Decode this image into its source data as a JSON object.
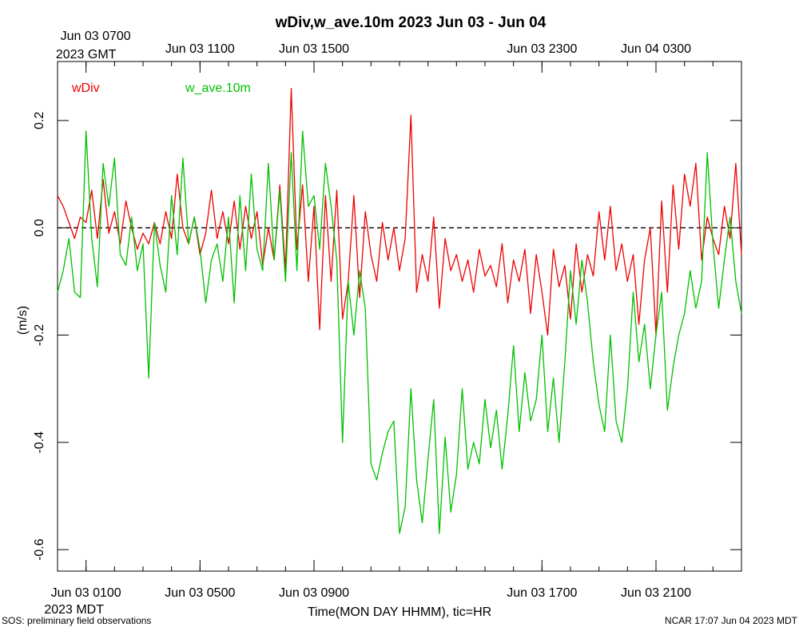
{
  "chart_data": {
    "type": "line",
    "title": "wDiv,w_ave.10m 2023 Jun 03 - Jun 04",
    "xlabel": "Time(MON DAY HHMM), tic=HR",
    "ylabel": "(m/s)",
    "ylim": [
      -0.64,
      0.31
    ],
    "x_unit": "hours since Jun 03 0000 MDT",
    "xlim": [
      0.0,
      24.0
    ],
    "yticks": [
      0.2,
      0.0,
      -0.2,
      -0.4,
      -0.6
    ],
    "yticks_labels": [
      "0.2",
      "0.0",
      "-0.2",
      "-0.4",
      "-0.6"
    ],
    "zero_line": 0.0,
    "bottom_axis_ticks": [
      {
        "x": 1.0,
        "label": "Jun 03 0100",
        "sublabel": "2023 MDT"
      },
      {
        "x": 5.0,
        "label": "Jun 03 0500",
        "sublabel": ""
      },
      {
        "x": 9.0,
        "label": "Jun 03 0900",
        "sublabel": ""
      },
      {
        "x": 17.0,
        "label": "Jun 03 1700",
        "sublabel": ""
      },
      {
        "x": 21.0,
        "label": "Jun 03 2100",
        "sublabel": ""
      }
    ],
    "top_axis_ticks": [
      {
        "x": 1.0,
        "label": "Jun 03 0700",
        "sublabel": "2023 GMT"
      },
      {
        "x": 5.0,
        "label": "Jun 03 1100",
        "sublabel": ""
      },
      {
        "x": 9.0,
        "label": "Jun 03 1500",
        "sublabel": ""
      },
      {
        "x": 17.0,
        "label": "Jun 03 2300",
        "sublabel": ""
      },
      {
        "x": 21.0,
        "label": "Jun 04 0300",
        "sublabel": ""
      }
    ],
    "legend": [
      {
        "name": "wDiv",
        "color": "#ee0000"
      },
      {
        "name": "w_ave.10m",
        "color": "#00c000"
      }
    ],
    "series": [
      {
        "name": "wDiv",
        "color": "#ee0000",
        "points": [
          [
            0.0,
            0.06
          ],
          [
            0.2,
            0.04
          ],
          [
            0.4,
            0.01
          ],
          [
            0.6,
            -0.02
          ],
          [
            0.8,
            0.02
          ],
          [
            1.0,
            0.01
          ],
          [
            1.2,
            0.07
          ],
          [
            1.4,
            -0.02
          ],
          [
            1.6,
            0.09
          ],
          [
            1.8,
            -0.01
          ],
          [
            2.0,
            0.03
          ],
          [
            2.2,
            -0.03
          ],
          [
            2.4,
            0.05
          ],
          [
            2.6,
            0.0
          ],
          [
            2.8,
            -0.04
          ],
          [
            3.0,
            -0.01
          ],
          [
            3.2,
            -0.03
          ],
          [
            3.4,
            0.01
          ],
          [
            3.6,
            -0.03
          ],
          [
            3.8,
            0.03
          ],
          [
            4.0,
            -0.02
          ],
          [
            4.2,
            0.1
          ],
          [
            4.4,
            0.0
          ],
          [
            4.6,
            -0.03
          ],
          [
            4.8,
            0.02
          ],
          [
            5.0,
            -0.05
          ],
          [
            5.2,
            -0.01
          ],
          [
            5.4,
            0.07
          ],
          [
            5.6,
            -0.02
          ],
          [
            5.8,
            0.03
          ],
          [
            6.0,
            -0.03
          ],
          [
            6.2,
            0.05
          ],
          [
            6.4,
            -0.04
          ],
          [
            6.6,
            0.04
          ],
          [
            6.8,
            -0.02
          ],
          [
            7.0,
            0.03
          ],
          [
            7.2,
            -0.07
          ],
          [
            7.4,
            0.0
          ],
          [
            7.6,
            -0.06
          ],
          [
            7.8,
            0.08
          ],
          [
            8.0,
            -0.08
          ],
          [
            8.2,
            0.26
          ],
          [
            8.4,
            -0.04
          ],
          [
            8.6,
            0.08
          ],
          [
            8.8,
            -0.1
          ],
          [
            9.0,
            0.04
          ],
          [
            9.2,
            -0.19
          ],
          [
            9.4,
            0.06
          ],
          [
            9.6,
            -0.1
          ],
          [
            9.8,
            0.07
          ],
          [
            10.0,
            -0.17
          ],
          [
            10.2,
            -0.1
          ],
          [
            10.4,
            0.06
          ],
          [
            10.6,
            -0.13
          ],
          [
            10.8,
            0.03
          ],
          [
            11.0,
            -0.05
          ],
          [
            11.2,
            -0.1
          ],
          [
            11.4,
            0.01
          ],
          [
            11.6,
            -0.06
          ],
          [
            11.8,
            0.0
          ],
          [
            12.0,
            -0.08
          ],
          [
            12.2,
            -0.02
          ],
          [
            12.4,
            0.21
          ],
          [
            12.6,
            -0.12
          ],
          [
            12.8,
            -0.05
          ],
          [
            13.0,
            -0.1
          ],
          [
            13.2,
            0.02
          ],
          [
            13.4,
            -0.15
          ],
          [
            13.6,
            -0.02
          ],
          [
            13.8,
            -0.08
          ],
          [
            14.0,
            -0.05
          ],
          [
            14.2,
            -0.1
          ],
          [
            14.4,
            -0.06
          ],
          [
            14.6,
            -0.12
          ],
          [
            14.8,
            -0.04
          ],
          [
            15.0,
            -0.09
          ],
          [
            15.2,
            -0.07
          ],
          [
            15.4,
            -0.11
          ],
          [
            15.6,
            -0.03
          ],
          [
            15.8,
            -0.14
          ],
          [
            16.0,
            -0.06
          ],
          [
            16.2,
            -0.1
          ],
          [
            16.4,
            -0.04
          ],
          [
            16.6,
            -0.16
          ],
          [
            16.8,
            -0.05
          ],
          [
            17.0,
            -0.12
          ],
          [
            17.2,
            -0.2
          ],
          [
            17.4,
            -0.04
          ],
          [
            17.6,
            -0.11
          ],
          [
            17.8,
            -0.07
          ],
          [
            18.0,
            -0.17
          ],
          [
            18.2,
            -0.03
          ],
          [
            18.4,
            -0.12
          ],
          [
            18.6,
            -0.05
          ],
          [
            18.8,
            -0.09
          ],
          [
            19.0,
            0.03
          ],
          [
            19.2,
            -0.06
          ],
          [
            19.4,
            0.04
          ],
          [
            19.6,
            -0.08
          ],
          [
            19.8,
            -0.03
          ],
          [
            20.0,
            -0.1
          ],
          [
            20.2,
            -0.05
          ],
          [
            20.4,
            -0.18
          ],
          [
            20.6,
            -0.06
          ],
          [
            20.8,
            0.0
          ],
          [
            21.0,
            -0.2
          ],
          [
            21.2,
            0.05
          ],
          [
            21.4,
            -0.12
          ],
          [
            21.6,
            0.08
          ],
          [
            21.8,
            -0.04
          ],
          [
            22.0,
            0.1
          ],
          [
            22.2,
            0.04
          ],
          [
            22.4,
            0.12
          ],
          [
            22.6,
            -0.06
          ],
          [
            22.8,
            0.02
          ],
          [
            23.0,
            -0.02
          ],
          [
            23.2,
            -0.05
          ],
          [
            23.4,
            0.04
          ],
          [
            23.6,
            -0.02
          ],
          [
            23.8,
            0.12
          ],
          [
            24.0,
            -0.05
          ]
        ]
      },
      {
        "name": "w_ave.10m",
        "color": "#00c000",
        "points": [
          [
            0.0,
            -0.12
          ],
          [
            0.2,
            -0.08
          ],
          [
            0.4,
            -0.02
          ],
          [
            0.6,
            -0.12
          ],
          [
            0.8,
            -0.13
          ],
          [
            1.0,
            0.18
          ],
          [
            1.2,
            -0.02
          ],
          [
            1.4,
            -0.11
          ],
          [
            1.6,
            0.12
          ],
          [
            1.8,
            0.04
          ],
          [
            2.0,
            0.13
          ],
          [
            2.2,
            -0.05
          ],
          [
            2.4,
            -0.07
          ],
          [
            2.6,
            0.02
          ],
          [
            2.8,
            -0.08
          ],
          [
            3.0,
            -0.03
          ],
          [
            3.2,
            -0.28
          ],
          [
            3.4,
            0.01
          ],
          [
            3.6,
            -0.07
          ],
          [
            3.8,
            -0.12
          ],
          [
            4.0,
            0.06
          ],
          [
            4.2,
            -0.05
          ],
          [
            4.4,
            0.13
          ],
          [
            4.6,
            -0.03
          ],
          [
            4.8,
            0.02
          ],
          [
            5.0,
            -0.04
          ],
          [
            5.2,
            -0.14
          ],
          [
            5.4,
            -0.06
          ],
          [
            5.6,
            -0.03
          ],
          [
            5.8,
            -0.1
          ],
          [
            6.0,
            0.02
          ],
          [
            6.2,
            -0.14
          ],
          [
            6.4,
            0.06
          ],
          [
            6.6,
            -0.08
          ],
          [
            6.8,
            0.1
          ],
          [
            7.0,
            -0.04
          ],
          [
            7.2,
            -0.08
          ],
          [
            7.4,
            0.12
          ],
          [
            7.6,
            -0.06
          ],
          [
            7.8,
            0.07
          ],
          [
            8.0,
            -0.1
          ],
          [
            8.2,
            0.14
          ],
          [
            8.4,
            -0.08
          ],
          [
            8.6,
            0.18
          ],
          [
            8.8,
            0.04
          ],
          [
            9.0,
            0.06
          ],
          [
            9.2,
            -0.04
          ],
          [
            9.4,
            0.12
          ],
          [
            9.6,
            0.04
          ],
          [
            9.8,
            -0.06
          ],
          [
            10.0,
            -0.4
          ],
          [
            10.2,
            -0.1
          ],
          [
            10.4,
            -0.2
          ],
          [
            10.6,
            -0.08
          ],
          [
            10.8,
            -0.15
          ],
          [
            11.0,
            -0.44
          ],
          [
            11.2,
            -0.47
          ],
          [
            11.4,
            -0.42
          ],
          [
            11.6,
            -0.38
          ],
          [
            11.8,
            -0.36
          ],
          [
            12.0,
            -0.57
          ],
          [
            12.2,
            -0.52
          ],
          [
            12.4,
            -0.3
          ],
          [
            12.6,
            -0.47
          ],
          [
            12.8,
            -0.55
          ],
          [
            13.0,
            -0.43
          ],
          [
            13.2,
            -0.32
          ],
          [
            13.4,
            -0.57
          ],
          [
            13.6,
            -0.39
          ],
          [
            13.8,
            -0.53
          ],
          [
            14.0,
            -0.46
          ],
          [
            14.2,
            -0.3
          ],
          [
            14.4,
            -0.45
          ],
          [
            14.6,
            -0.4
          ],
          [
            14.8,
            -0.44
          ],
          [
            15.0,
            -0.32
          ],
          [
            15.2,
            -0.41
          ],
          [
            15.4,
            -0.34
          ],
          [
            15.6,
            -0.45
          ],
          [
            15.8,
            -0.35
          ],
          [
            16.0,
            -0.22
          ],
          [
            16.2,
            -0.38
          ],
          [
            16.4,
            -0.27
          ],
          [
            16.6,
            -0.36
          ],
          [
            16.8,
            -0.32
          ],
          [
            17.0,
            -0.2
          ],
          [
            17.2,
            -0.38
          ],
          [
            17.4,
            -0.28
          ],
          [
            17.6,
            -0.4
          ],
          [
            17.8,
            -0.25
          ],
          [
            18.0,
            -0.08
          ],
          [
            18.2,
            -0.18
          ],
          [
            18.4,
            -0.06
          ],
          [
            18.6,
            -0.14
          ],
          [
            18.8,
            -0.25
          ],
          [
            19.0,
            -0.33
          ],
          [
            19.2,
            -0.38
          ],
          [
            19.4,
            -0.2
          ],
          [
            19.6,
            -0.36
          ],
          [
            19.8,
            -0.4
          ],
          [
            20.0,
            -0.3
          ],
          [
            20.2,
            -0.12
          ],
          [
            20.4,
            -0.25
          ],
          [
            20.6,
            -0.18
          ],
          [
            20.8,
            -0.3
          ],
          [
            21.0,
            -0.2
          ],
          [
            21.2,
            -0.12
          ],
          [
            21.4,
            -0.34
          ],
          [
            21.6,
            -0.26
          ],
          [
            21.8,
            -0.2
          ],
          [
            22.0,
            -0.16
          ],
          [
            22.2,
            -0.08
          ],
          [
            22.4,
            -0.15
          ],
          [
            22.6,
            -0.1
          ],
          [
            22.8,
            0.14
          ],
          [
            23.0,
            -0.03
          ],
          [
            23.2,
            -0.15
          ],
          [
            23.4,
            -0.06
          ],
          [
            23.6,
            0.02
          ],
          [
            23.8,
            -0.1
          ],
          [
            24.0,
            -0.16
          ]
        ]
      }
    ]
  },
  "footer": {
    "left": "SOS: preliminary field observations",
    "right": "NCAR 17:07 Jun 04 2023 MDT"
  }
}
